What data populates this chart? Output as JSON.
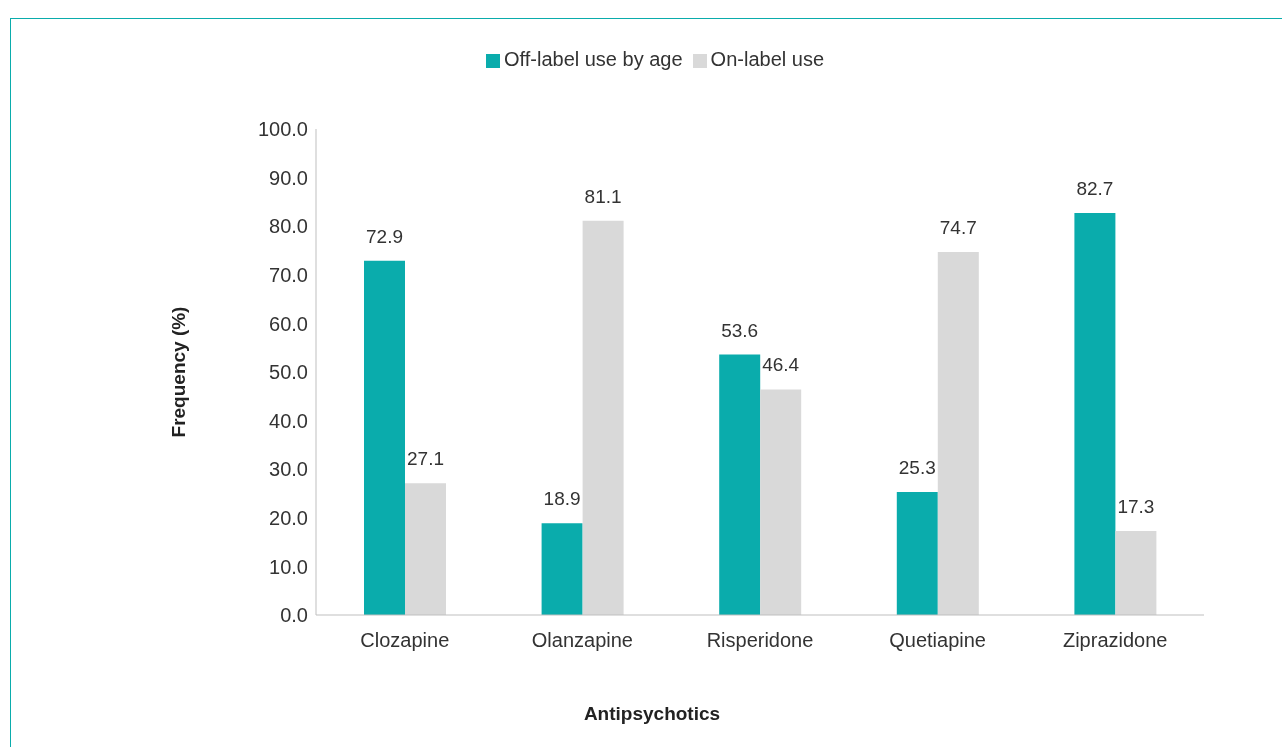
{
  "chart_data": {
    "type": "bar",
    "xlabel": "Antipsychotics",
    "ylabel": "Frequency (%)",
    "categories": [
      "Clozapine",
      "Olanzapine",
      "Risperidone",
      "Quetiapine",
      "Ziprazidone"
    ],
    "series": [
      {
        "name": "Off-label use by age",
        "color": "#0aacac",
        "values": [
          72.9,
          18.9,
          53.6,
          25.3,
          82.7
        ]
      },
      {
        "name": "On-label use",
        "color": "#d9d9d9",
        "values": [
          27.1,
          81.1,
          46.4,
          74.7,
          17.3
        ]
      }
    ],
    "ylim": [
      0,
      100
    ],
    "yticks": [
      {
        "value": 0,
        "label": "0.0"
      },
      {
        "value": 10,
        "label": "10.0"
      },
      {
        "value": 20,
        "label": "20.0"
      },
      {
        "value": 30,
        "label": "30.0"
      },
      {
        "value": 40,
        "label": "40.0"
      },
      {
        "value": 50,
        "label": "50.0"
      },
      {
        "value": 60,
        "label": "60.0"
      },
      {
        "value": 70,
        "label": "70.0"
      },
      {
        "value": 80,
        "label": "80.0"
      },
      {
        "value": 90,
        "label": "90.0"
      },
      {
        "value": 100,
        "label": "100.0"
      }
    ],
    "data_labels": true,
    "legend": "top",
    "grid": false
  }
}
